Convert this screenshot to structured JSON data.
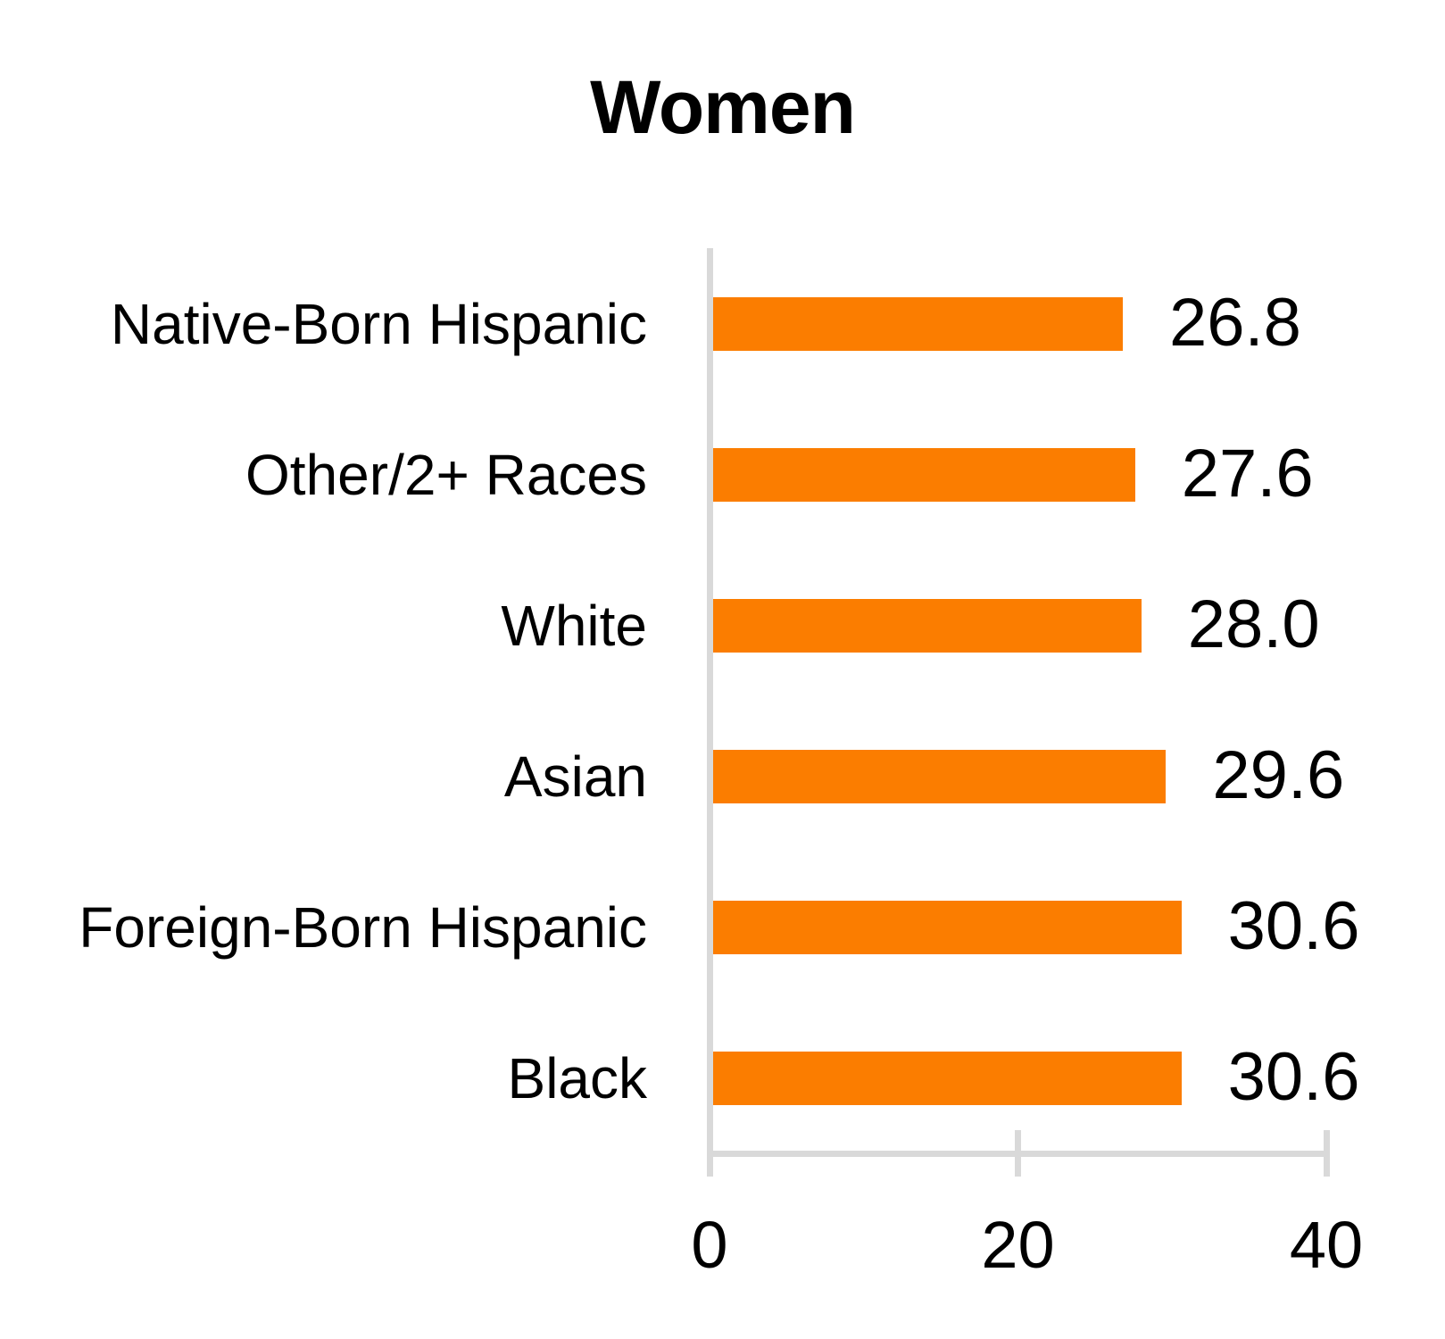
{
  "chart_data": {
    "type": "bar",
    "orientation": "horizontal",
    "title": "Women",
    "categories": [
      "Native-Born Hispanic",
      "Other/2+ Races",
      "White",
      "Asian",
      "Foreign-Born Hispanic",
      "Black"
    ],
    "values": [
      26.8,
      27.6,
      28.0,
      29.6,
      30.6,
      30.6
    ],
    "value_labels": [
      "26.8",
      "27.6",
      "28.0",
      "29.6",
      "30.6",
      "30.6"
    ],
    "xlabel": "",
    "ylabel": "",
    "xlim": [
      0,
      40
    ],
    "x_ticks": [
      0,
      20,
      40
    ],
    "x_tick_labels": [
      "0",
      "20",
      "40"
    ],
    "grid": false,
    "legend": "none",
    "data_labels": "outside-end"
  },
  "colors": {
    "bar": "#FB7D00",
    "axis": "#D9D9D9",
    "text": "#000000",
    "background": "#FFFFFF"
  }
}
